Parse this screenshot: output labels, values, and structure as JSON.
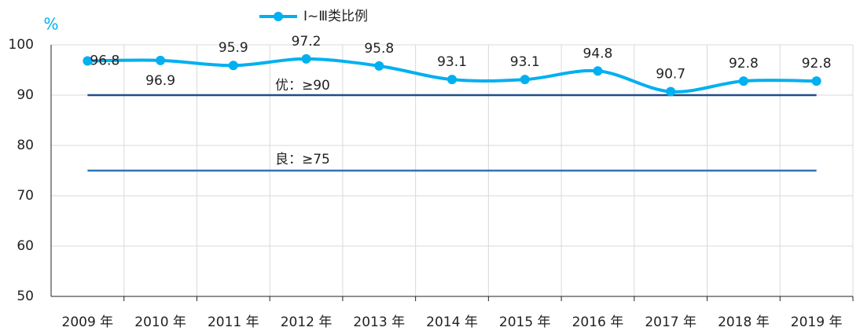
{
  "chart_data": {
    "type": "line",
    "y_label": "%",
    "categories": [
      "2009 年",
      "2010 年",
      "2011 年",
      "2012 年",
      "2013 年",
      "2014 年",
      "2015 年",
      "2016 年",
      "2017 年",
      "2018 年",
      "2019 年"
    ],
    "series": [
      {
        "name": "Ⅰ~Ⅲ类比例",
        "color": "#00b0f0",
        "values": [
          96.8,
          96.9,
          95.9,
          97.2,
          95.8,
          93.1,
          93.1,
          94.8,
          90.7,
          92.8,
          92.8
        ]
      }
    ],
    "reference_lines": [
      {
        "label": "优：≥90",
        "value": 90,
        "color": "#1f4e8c"
      },
      {
        "label": "良：≥75",
        "value": 75,
        "color": "#2e75b6"
      }
    ],
    "ylim": [
      50,
      100
    ],
    "yticks": [
      50,
      60,
      70,
      80,
      90,
      100
    ],
    "grid": true,
    "legend": "top"
  }
}
